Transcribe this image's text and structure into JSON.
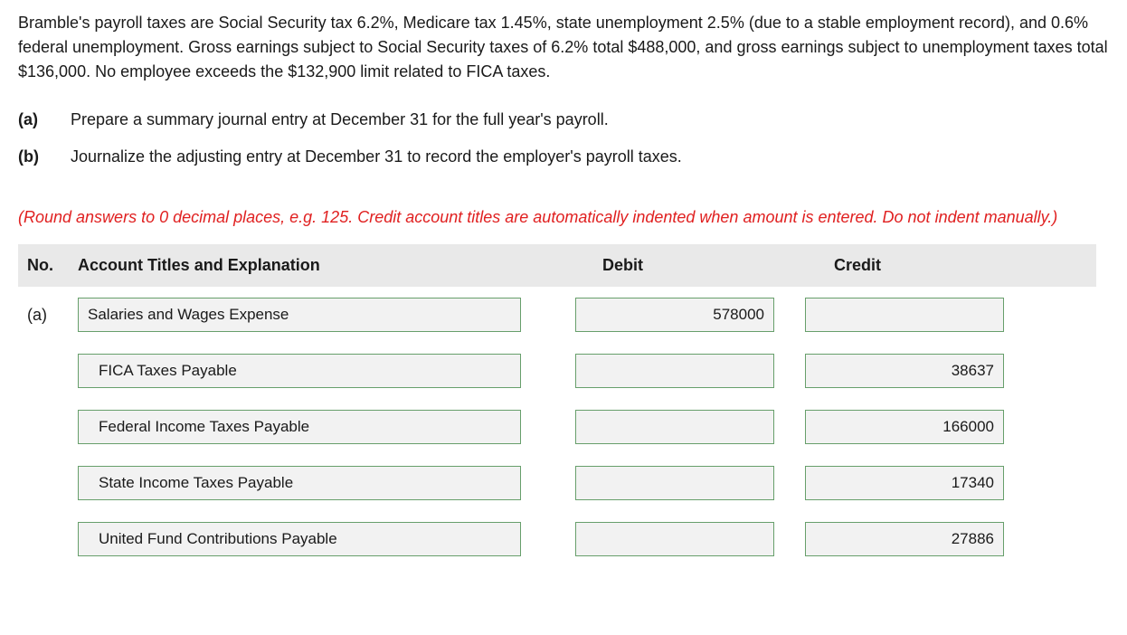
{
  "problem": {
    "intro": "Bramble's payroll taxes are Social Security tax 6.2%, Medicare tax 1.45%, state unemployment 2.5% (due to a stable employment record), and 0.6% federal unemployment. Gross earnings subject to Social Security taxes of 6.2% total $488,000, and gross earnings subject to unemployment taxes total $136,000. No employee exceeds the $132,900 limit related to FICA taxes.",
    "parts": [
      {
        "label": "(a)",
        "text": "Prepare a summary journal entry at December 31 for the full year's payroll."
      },
      {
        "label": "(b)",
        "text": "Journalize the adjusting entry at December 31 to record the employer's payroll taxes."
      }
    ],
    "instruction": "(Round answers to 0 decimal places, e.g. 125. Credit account titles are automatically indented when amount is entered. Do not indent manually.)"
  },
  "table": {
    "headers": {
      "no": "No.",
      "title": "Account Titles and Explanation",
      "debit": "Debit",
      "credit": "Credit"
    },
    "rows": [
      {
        "no": "(a)",
        "indent": 0,
        "account": "Salaries and Wages Expense",
        "debit": "578000",
        "credit": ""
      },
      {
        "no": "",
        "indent": 1,
        "account": "FICA Taxes Payable",
        "debit": "",
        "credit": "38637"
      },
      {
        "no": "",
        "indent": 1,
        "account": "Federal Income Taxes Payable",
        "debit": "",
        "credit": "166000"
      },
      {
        "no": "",
        "indent": 1,
        "account": "State Income Taxes Payable",
        "debit": "",
        "credit": "17340"
      },
      {
        "no": "",
        "indent": 1,
        "account": "United Fund Contributions Payable",
        "debit": "",
        "credit": "27886"
      }
    ]
  },
  "style": {
    "field_border": "#679f6b",
    "field_bg": "#f2f2f2",
    "header_bg": "#e9e9e9",
    "instruction_color": "#e02020"
  }
}
